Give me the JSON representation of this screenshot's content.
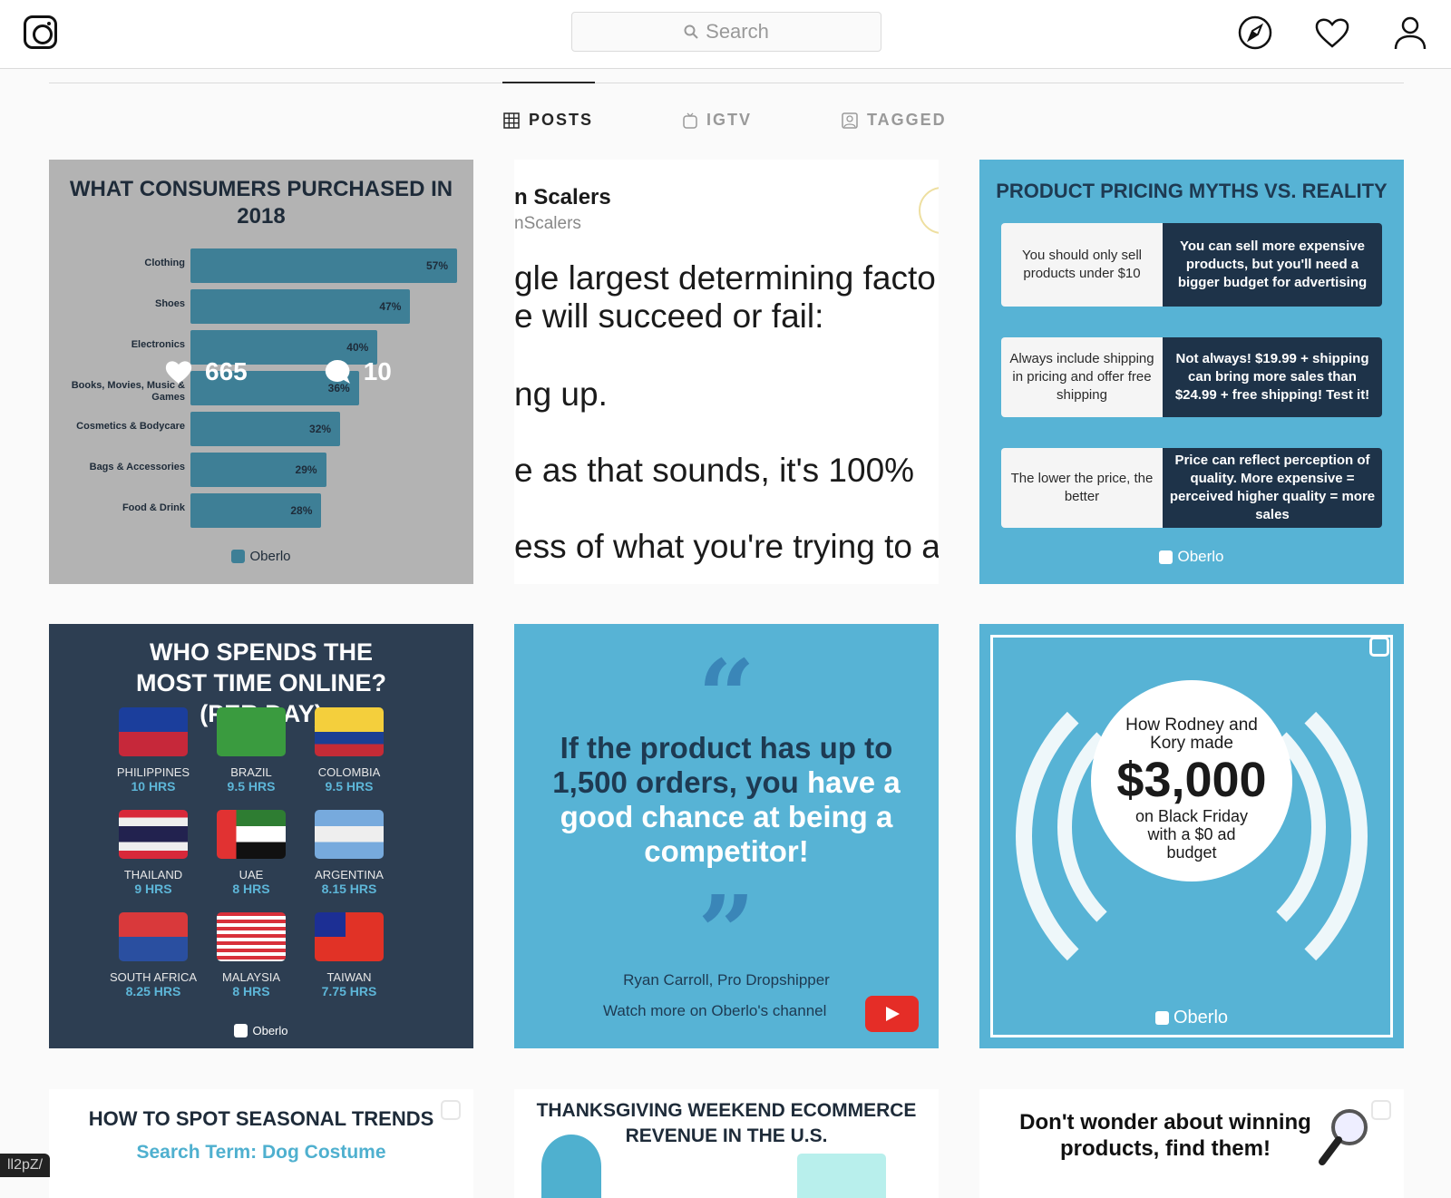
{
  "header": {
    "search_placeholder": "Search",
    "icons": [
      "instagram-logo",
      "compass-icon",
      "heart-icon",
      "profile-icon"
    ]
  },
  "tabs": [
    {
      "label": "POSTS",
      "icon": "grid-icon",
      "active": true
    },
    {
      "label": "IGTV",
      "icon": "tv-icon",
      "active": false
    },
    {
      "label": "TAGGED",
      "icon": "tagged-icon",
      "active": false
    }
  ],
  "posts": {
    "p1": {
      "title": "WHAT CONSUMERS PURCHASED IN 2018",
      "likes": "665",
      "comments": "10",
      "brand": "Oberlo",
      "bars": [
        {
          "label": "Clothing",
          "value": 57,
          "text": "57%"
        },
        {
          "label": "Shoes",
          "value": 47,
          "text": "47%"
        },
        {
          "label": "Electronics",
          "value": 40,
          "text": "40%"
        },
        {
          "label": "Books, Movies, Music & Games",
          "value": 36,
          "text": "36%"
        },
        {
          "label": "Cosmetics & Bodycare",
          "value": 32,
          "text": "32%"
        },
        {
          "label": "Bags & Accessories",
          "value": 29,
          "text": "29%"
        },
        {
          "label": "Food & Drink",
          "value": 28,
          "text": "28%"
        }
      ]
    },
    "p2": {
      "name": "n Scalers",
      "handle": "nScalers",
      "lines": [
        "gle largest determining facto",
        "e will succeed or fail:",
        "ng up.",
        "e as that sounds, it's 100%",
        "ess of what you're trying to a"
      ]
    },
    "p3": {
      "title": "PRODUCT PRICING MYTHS VS. REALITY",
      "brand": "Oberlo",
      "rows": [
        {
          "myth": "You should only sell products under $10",
          "reality": "You can sell more expensive products, but you'll need a bigger budget for advertising"
        },
        {
          "myth": "Always include shipping in pricing and offer free shipping",
          "reality": "Not always! $19.99 + shipping can bring more sales than $24.99 + free shipping! Test it!"
        },
        {
          "myth": "The lower the price, the better",
          "reality": "Price can reflect perception of quality. More expensive = perceived higher quality = more sales"
        }
      ]
    },
    "p4": {
      "title": "WHO SPENDS THE MOST TIME ONLINE? (PER DAY)",
      "brand": "Oberlo",
      "countries": [
        {
          "name": "PHILIPPINES",
          "hours": "10 HRS"
        },
        {
          "name": "BRAZIL",
          "hours": "9.5 HRS"
        },
        {
          "name": "COLOMBIA",
          "hours": "9.5 HRS"
        },
        {
          "name": "THAILAND",
          "hours": "9 HRS"
        },
        {
          "name": "UAE",
          "hours": "8 HRS"
        },
        {
          "name": "ARGENTINA",
          "hours": "8.15 HRS"
        },
        {
          "name": "SOUTH AFRICA",
          "hours": "8.25 HRS"
        },
        {
          "name": "MALAYSIA",
          "hours": "8 HRS"
        },
        {
          "name": "TAIWAN",
          "hours": "7.75 HRS"
        }
      ]
    },
    "p5": {
      "quote_dark": "If the product has up to 1,500 orders, you",
      "quote_light": "have a good chance at being a competitor!",
      "author": "Ryan Carroll, Pro Dropshipper",
      "cta": "Watch more on Oberlo's channel"
    },
    "p6": {
      "line1": "How Rodney and Kory made",
      "amount": "$3,000",
      "line2": "on Black Friday with a $0 ad budget",
      "brand": "Oberlo"
    },
    "p7": {
      "title": "HOW TO SPOT SEASONAL TRENDS",
      "subtitle": "Search Term: Dog Costume"
    },
    "p8": {
      "title": "THANKSGIVING WEEKEND ECOMMERCE REVENUE IN THE U.S."
    },
    "p9": {
      "title": "Don't wonder about winning products, find them!"
    }
  },
  "status_url": "ll2pZ/",
  "colors": {
    "accent_blue": "#57b3d5",
    "navy": "#1e3349",
    "bar": "#3e7f96"
  }
}
